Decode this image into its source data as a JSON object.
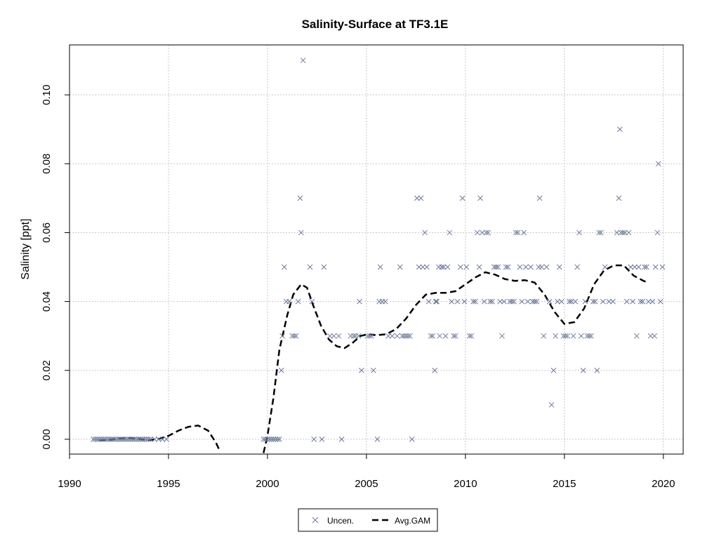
{
  "chart_data": {
    "type": "scatter",
    "title": "Salinity-Surface at TF3.1E",
    "xlabel": "",
    "ylabel": "Salinity [ppt]",
    "xlim": [
      1990,
      2021
    ],
    "ylim": [
      -0.0043,
      0.1145
    ],
    "x_ticks": [
      "1990",
      "1995",
      "2000",
      "2005",
      "2010",
      "2015",
      "2020"
    ],
    "y_ticks": [
      "0.00",
      "0.02",
      "0.04",
      "0.06",
      "0.08",
      "0.10"
    ],
    "grid": true,
    "legend_position": "bottom",
    "colors": {
      "points": "#6b7a99",
      "gam": "#000000",
      "grid": "#c8c8c8",
      "axis": "#000000"
    },
    "series": [
      {
        "name": "Uncen.",
        "kind": "scatter",
        "marker": "x",
        "points": [
          [
            1991.2,
            0
          ],
          [
            1991.3,
            0
          ],
          [
            1991.4,
            0
          ],
          [
            1991.5,
            0
          ],
          [
            1991.6,
            0
          ],
          [
            1991.7,
            0
          ],
          [
            1991.8,
            0
          ],
          [
            1991.9,
            0
          ],
          [
            1992.0,
            0
          ],
          [
            1992.1,
            0
          ],
          [
            1992.2,
            0
          ],
          [
            1992.3,
            0
          ],
          [
            1992.4,
            0
          ],
          [
            1992.5,
            0
          ],
          [
            1992.6,
            0
          ],
          [
            1992.7,
            0
          ],
          [
            1992.8,
            0
          ],
          [
            1992.9,
            0
          ],
          [
            1993.0,
            0
          ],
          [
            1993.1,
            0
          ],
          [
            1993.2,
            0
          ],
          [
            1993.3,
            0
          ],
          [
            1993.4,
            0
          ],
          [
            1993.5,
            0
          ],
          [
            1993.6,
            0
          ],
          [
            1993.7,
            0
          ],
          [
            1993.8,
            0
          ],
          [
            1993.9,
            0
          ],
          [
            1994.0,
            0
          ],
          [
            1994.1,
            0
          ],
          [
            1994.3,
            0
          ],
          [
            1994.5,
            0
          ],
          [
            1994.7,
            0
          ],
          [
            1994.9,
            0
          ],
          [
            1999.8,
            0
          ],
          [
            1999.9,
            0
          ],
          [
            2000.0,
            0
          ],
          [
            2000.1,
            0
          ],
          [
            2000.2,
            0
          ],
          [
            2000.3,
            0
          ],
          [
            2000.4,
            0
          ],
          [
            2000.5,
            0
          ],
          [
            2000.6,
            0
          ],
          [
            2000.7,
            0.02
          ],
          [
            2000.75,
            0.03
          ],
          [
            2000.85,
            0.05
          ],
          [
            2000.95,
            0.04
          ],
          [
            2001.1,
            0.04
          ],
          [
            2001.25,
            0.03
          ],
          [
            2001.35,
            0.03
          ],
          [
            2001.45,
            0.03
          ],
          [
            2001.55,
            0.04
          ],
          [
            2001.65,
            0.07
          ],
          [
            2001.7,
            0.06
          ],
          [
            2001.8,
            0.11
          ],
          [
            2002.15,
            0.05
          ],
          [
            2002.25,
            0.04
          ],
          [
            2002.35,
            0
          ],
          [
            2002.75,
            0
          ],
          [
            2002.85,
            0.05
          ],
          [
            2003.15,
            0.03
          ],
          [
            2003.35,
            0.03
          ],
          [
            2003.6,
            0.03
          ],
          [
            2003.75,
            0
          ],
          [
            2004.2,
            0.03
          ],
          [
            2004.35,
            0.03
          ],
          [
            2004.45,
            0.03
          ],
          [
            2004.6,
            0.03
          ],
          [
            2004.65,
            0.04
          ],
          [
            2004.75,
            0.02
          ],
          [
            2005.05,
            0.03
          ],
          [
            2005.15,
            0.03
          ],
          [
            2005.25,
            0.03
          ],
          [
            2005.35,
            0.02
          ],
          [
            2005.55,
            0
          ],
          [
            2005.65,
            0.04
          ],
          [
            2005.7,
            0.05
          ],
          [
            2005.8,
            0.04
          ],
          [
            2005.95,
            0.04
          ],
          [
            2006.1,
            0.03
          ],
          [
            2006.3,
            0.03
          ],
          [
            2006.55,
            0.03
          ],
          [
            2006.7,
            0.05
          ],
          [
            2006.8,
            0.03
          ],
          [
            2006.9,
            0.03
          ],
          [
            2007.0,
            0.03
          ],
          [
            2007.1,
            0.03
          ],
          [
            2007.2,
            0.03
          ],
          [
            2007.3,
            0
          ],
          [
            2007.55,
            0.07
          ],
          [
            2007.65,
            0.05
          ],
          [
            2007.75,
            0.07
          ],
          [
            2007.85,
            0.05
          ],
          [
            2007.95,
            0.06
          ],
          [
            2008.05,
            0.05
          ],
          [
            2008.15,
            0.04
          ],
          [
            2008.25,
            0.03
          ],
          [
            2008.35,
            0.03
          ],
          [
            2008.45,
            0.02
          ],
          [
            2008.5,
            0.04
          ],
          [
            2008.55,
            0.04
          ],
          [
            2008.65,
            0.05
          ],
          [
            2008.7,
            0.03
          ],
          [
            2008.8,
            0.05
          ],
          [
            2008.9,
            0.05
          ],
          [
            2009.0,
            0.03
          ],
          [
            2009.1,
            0.05
          ],
          [
            2009.2,
            0.06
          ],
          [
            2009.3,
            0.04
          ],
          [
            2009.4,
            0.03
          ],
          [
            2009.5,
            0.03
          ],
          [
            2009.6,
            0.04
          ],
          [
            2009.75,
            0.05
          ],
          [
            2009.85,
            0.07
          ],
          [
            2009.95,
            0.04
          ],
          [
            2010.05,
            0.05
          ],
          [
            2010.2,
            0.03
          ],
          [
            2010.3,
            0.03
          ],
          [
            2010.4,
            0.04
          ],
          [
            2010.5,
            0.04
          ],
          [
            2010.6,
            0.06
          ],
          [
            2010.7,
            0.05
          ],
          [
            2010.75,
            0.07
          ],
          [
            2010.85,
            0.06
          ],
          [
            2010.95,
            0.04
          ],
          [
            2011.05,
            0.06
          ],
          [
            2011.15,
            0.06
          ],
          [
            2011.25,
            0.04
          ],
          [
            2011.35,
            0.04
          ],
          [
            2011.45,
            0.05
          ],
          [
            2011.55,
            0.05
          ],
          [
            2011.65,
            0.05
          ],
          [
            2011.75,
            0.04
          ],
          [
            2011.85,
            0.03
          ],
          [
            2011.95,
            0.04
          ],
          [
            2012.05,
            0.05
          ],
          [
            2012.15,
            0.05
          ],
          [
            2012.25,
            0.04
          ],
          [
            2012.35,
            0.04
          ],
          [
            2012.45,
            0.04
          ],
          [
            2012.55,
            0.06
          ],
          [
            2012.65,
            0.06
          ],
          [
            2012.75,
            0.05
          ],
          [
            2012.85,
            0.04
          ],
          [
            2012.95,
            0.06
          ],
          [
            2013.05,
            0.05
          ],
          [
            2013.15,
            0.04
          ],
          [
            2013.3,
            0.05
          ],
          [
            2013.4,
            0.04
          ],
          [
            2013.5,
            0.04
          ],
          [
            2013.6,
            0.04
          ],
          [
            2013.7,
            0.05
          ],
          [
            2013.75,
            0.07
          ],
          [
            2013.85,
            0.05
          ],
          [
            2013.95,
            0.03
          ],
          [
            2014.1,
            0.05
          ],
          [
            2014.25,
            0.04
          ],
          [
            2014.35,
            0.01
          ],
          [
            2014.45,
            0.02
          ],
          [
            2014.55,
            0.03
          ],
          [
            2014.65,
            0.04
          ],
          [
            2014.75,
            0.05
          ],
          [
            2014.85,
            0.04
          ],
          [
            2014.95,
            0.03
          ],
          [
            2015.05,
            0.03
          ],
          [
            2015.15,
            0.03
          ],
          [
            2015.25,
            0.04
          ],
          [
            2015.35,
            0.04
          ],
          [
            2015.45,
            0.03
          ],
          [
            2015.55,
            0.04
          ],
          [
            2015.65,
            0.05
          ],
          [
            2015.75,
            0.06
          ],
          [
            2015.85,
            0.03
          ],
          [
            2015.95,
            0.02
          ],
          [
            2016.05,
            0.04
          ],
          [
            2016.15,
            0.03
          ],
          [
            2016.25,
            0.03
          ],
          [
            2016.35,
            0.03
          ],
          [
            2016.45,
            0.04
          ],
          [
            2016.55,
            0.04
          ],
          [
            2016.65,
            0.02
          ],
          [
            2016.75,
            0.06
          ],
          [
            2016.85,
            0.06
          ],
          [
            2016.95,
            0.04
          ],
          [
            2017.05,
            0.05
          ],
          [
            2017.25,
            0.04
          ],
          [
            2017.45,
            0.04
          ],
          [
            2017.65,
            0.06
          ],
          [
            2017.75,
            0.07
          ],
          [
            2017.8,
            0.09
          ],
          [
            2017.85,
            0.06
          ],
          [
            2017.95,
            0.06
          ],
          [
            2018.05,
            0.06
          ],
          [
            2018.15,
            0.04
          ],
          [
            2018.25,
            0.06
          ],
          [
            2018.35,
            0.05
          ],
          [
            2018.45,
            0.04
          ],
          [
            2018.55,
            0.05
          ],
          [
            2018.65,
            0.03
          ],
          [
            2018.75,
            0.05
          ],
          [
            2018.85,
            0.04
          ],
          [
            2018.95,
            0.04
          ],
          [
            2019.05,
            0.05
          ],
          [
            2019.15,
            0.05
          ],
          [
            2019.25,
            0.04
          ],
          [
            2019.35,
            0.03
          ],
          [
            2019.45,
            0.04
          ],
          [
            2019.55,
            0.03
          ],
          [
            2019.6,
            0.05
          ],
          [
            2019.7,
            0.06
          ],
          [
            2019.75,
            0.08
          ],
          [
            2019.85,
            0.04
          ],
          [
            2019.95,
            0.05
          ]
        ]
      },
      {
        "name": "Avg.GAM",
        "kind": "line",
        "dash": true,
        "points": [
          [
            1991.5,
            -0.0003
          ],
          [
            1992.0,
            -0.0002
          ],
          [
            1992.5,
            0.0002
          ],
          [
            1993.0,
            0.0004
          ],
          [
            1993.5,
            0.0001
          ],
          [
            1994.0,
            -0.0003
          ],
          [
            1994.5,
            0.0001
          ],
          [
            1995.0,
            0.001
          ],
          [
            1995.5,
            0.0025
          ],
          [
            1996.0,
            0.0036
          ],
          [
            1996.5,
            0.004
          ],
          [
            1997.0,
            0.0025
          ],
          [
            1997.4,
            -0.001
          ],
          [
            1997.6,
            -0.0035
          ],
          [
            1999.8,
            -0.004
          ],
          [
            2000.0,
            0.001
          ],
          [
            2000.3,
            0.012
          ],
          [
            2000.6,
            0.026
          ],
          [
            2001.0,
            0.036
          ],
          [
            2001.3,
            0.042
          ],
          [
            2001.7,
            0.045
          ],
          [
            2002.0,
            0.044
          ],
          [
            2002.3,
            0.039
          ],
          [
            2002.7,
            0.033
          ],
          [
            2003.1,
            0.029
          ],
          [
            2003.5,
            0.027
          ],
          [
            2003.9,
            0.0265
          ],
          [
            2004.3,
            0.028
          ],
          [
            2004.7,
            0.03
          ],
          [
            2005.1,
            0.0305
          ],
          [
            2005.5,
            0.0302
          ],
          [
            2006.0,
            0.0305
          ],
          [
            2006.5,
            0.032
          ],
          [
            2007.0,
            0.035
          ],
          [
            2007.5,
            0.039
          ],
          [
            2008.0,
            0.042
          ],
          [
            2008.5,
            0.0425
          ],
          [
            2009.0,
            0.0425
          ],
          [
            2009.5,
            0.043
          ],
          [
            2010.0,
            0.045
          ],
          [
            2010.5,
            0.047
          ],
          [
            2011.0,
            0.0485
          ],
          [
            2011.5,
            0.0478
          ],
          [
            2012.0,
            0.0465
          ],
          [
            2012.5,
            0.046
          ],
          [
            2013.0,
            0.0462
          ],
          [
            2013.5,
            0.0455
          ],
          [
            2014.0,
            0.042
          ],
          [
            2014.5,
            0.037
          ],
          [
            2015.0,
            0.0335
          ],
          [
            2015.5,
            0.034
          ],
          [
            2016.0,
            0.038
          ],
          [
            2016.5,
            0.045
          ],
          [
            2017.0,
            0.049
          ],
          [
            2017.5,
            0.0505
          ],
          [
            2018.0,
            0.0505
          ],
          [
            2018.5,
            0.0475
          ],
          [
            2019.0,
            0.046
          ],
          [
            2019.2,
            0.0455
          ]
        ]
      }
    ]
  }
}
